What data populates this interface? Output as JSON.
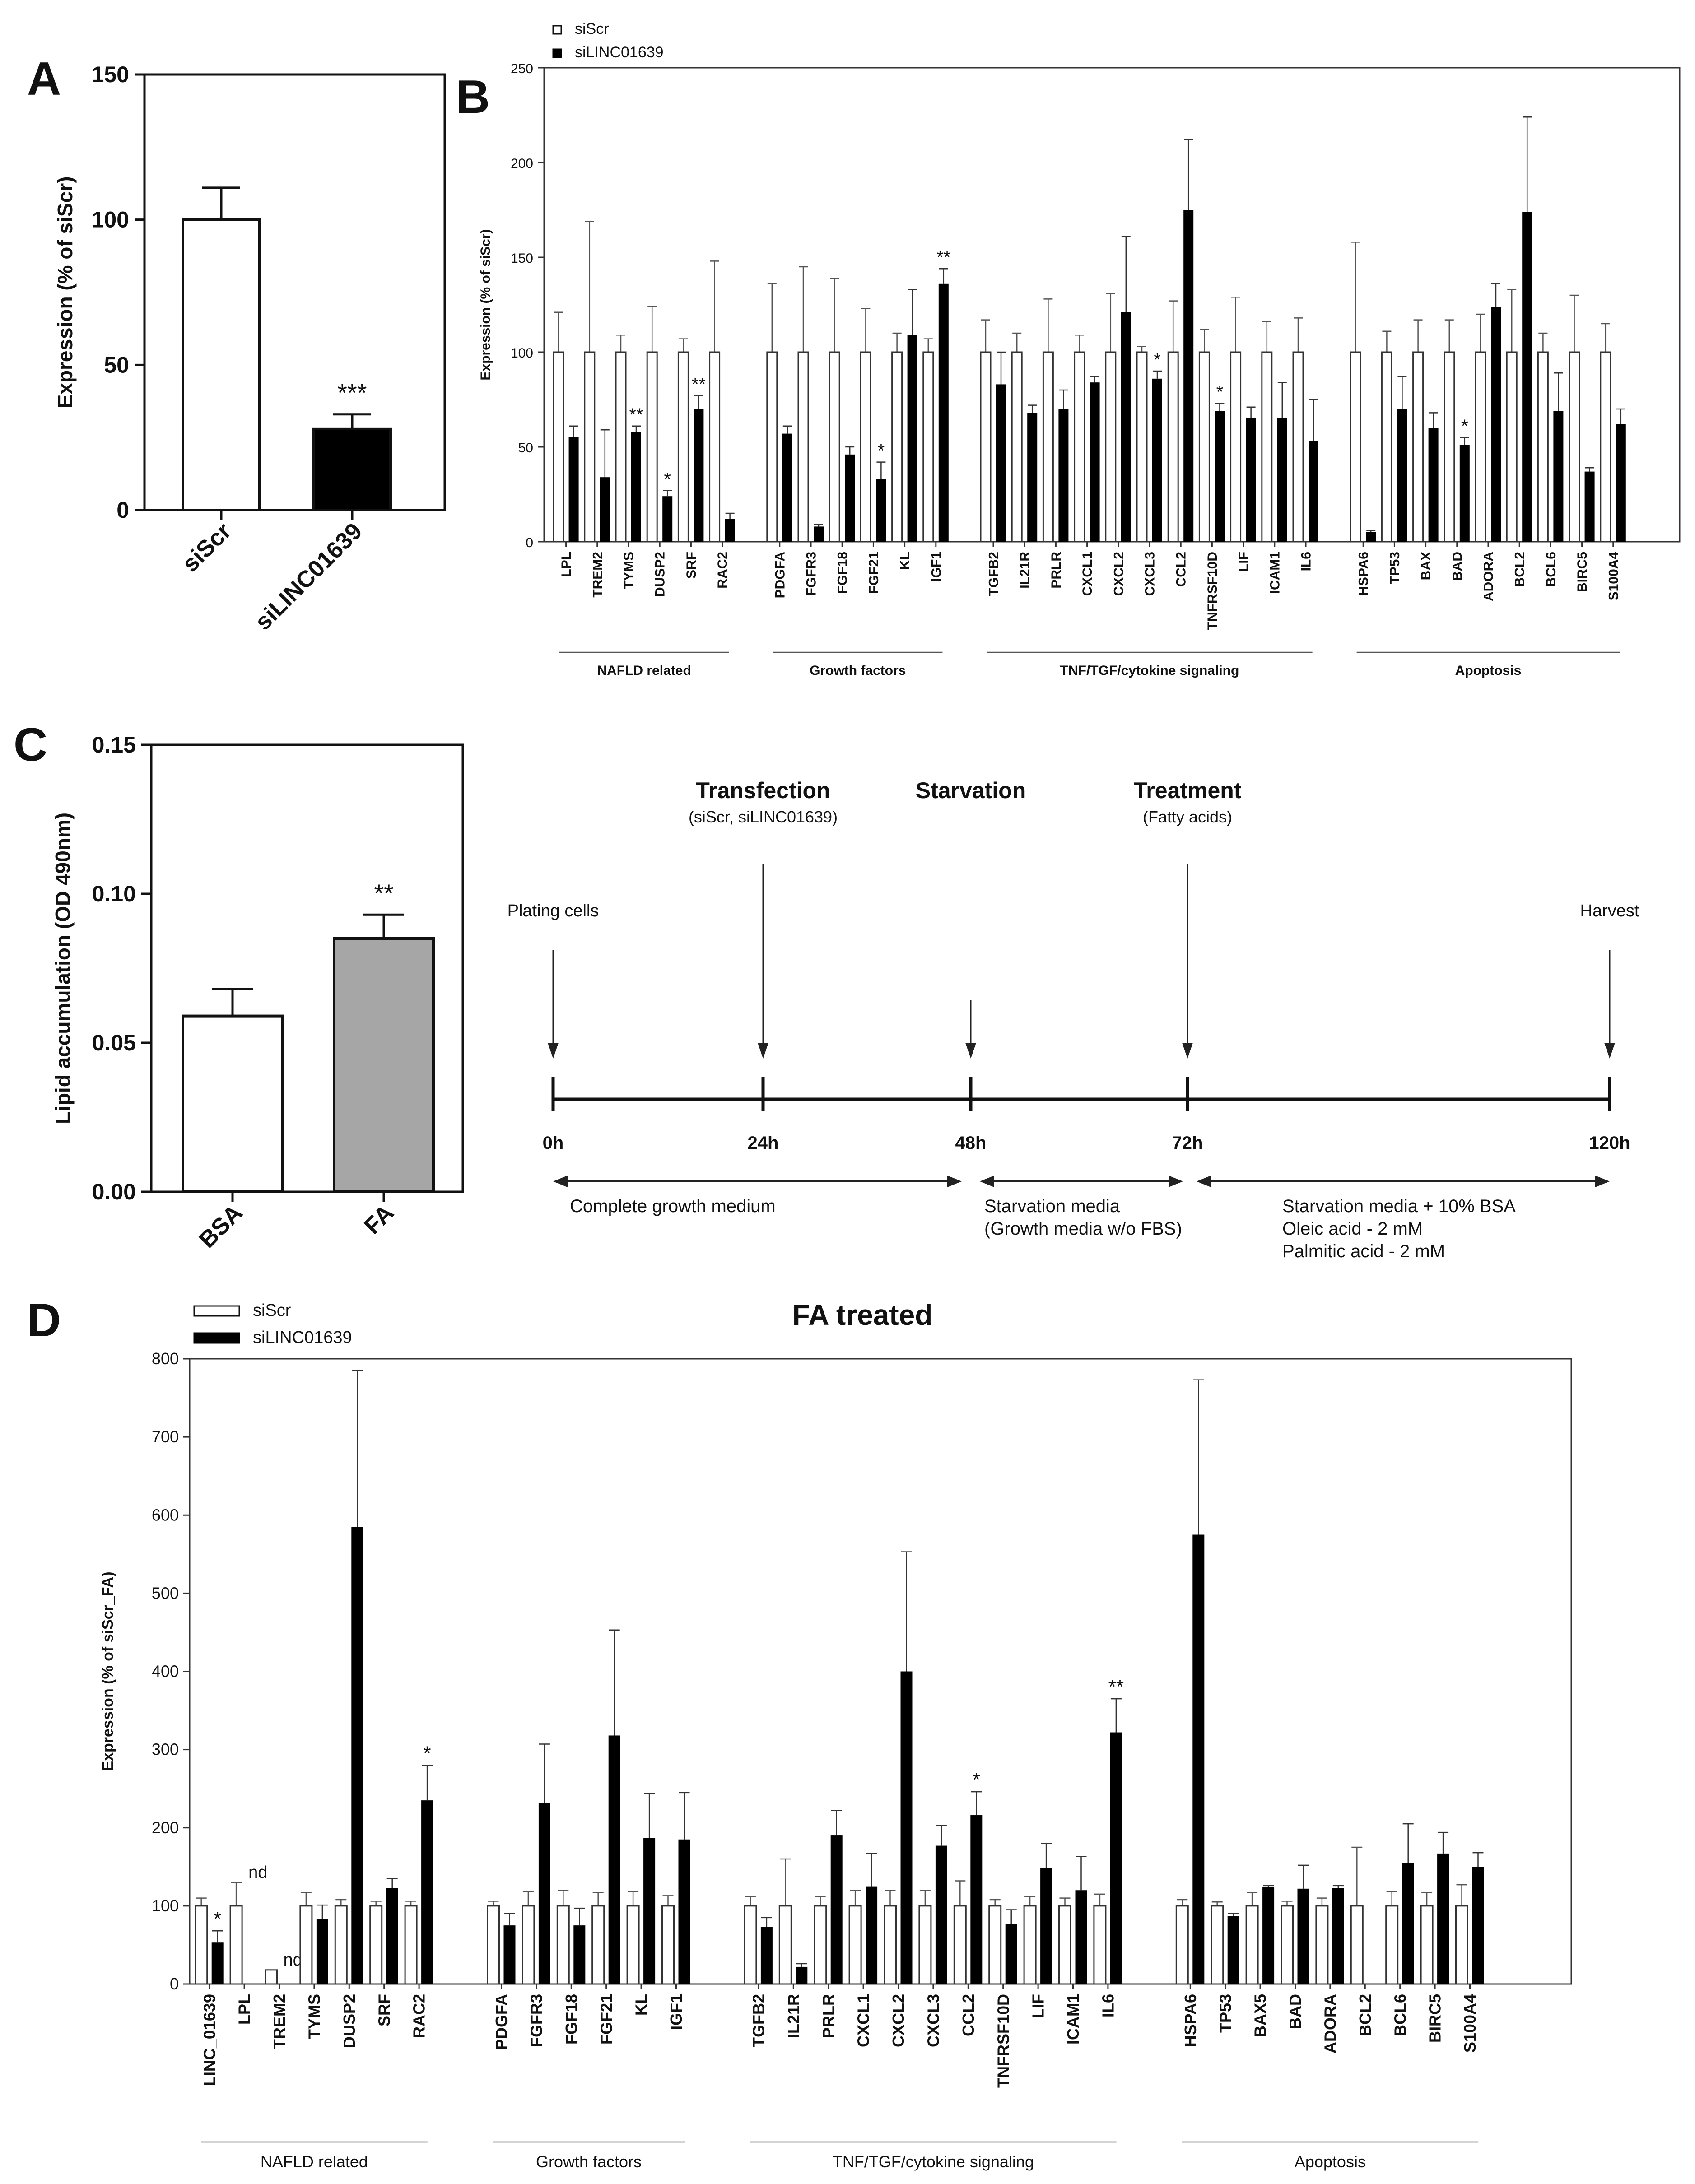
{
  "panels": {
    "A": "A",
    "B": "B",
    "C": "C",
    "D": "D"
  },
  "chart_data": [
    {
      "panel": "A",
      "type": "bar",
      "ylabel": "Expression (% of siScr)",
      "ylim": [
        0,
        150
      ],
      "yticks": [
        "0",
        "50",
        "100",
        "150"
      ],
      "categories": [
        "siScr",
        "siLINC01639"
      ],
      "values": [
        100,
        28
      ],
      "errors": [
        11,
        5
      ],
      "significance": [
        "",
        "***"
      ],
      "colors": [
        "#ffffff",
        "#000000"
      ]
    },
    {
      "panel": "B",
      "type": "bar",
      "ylabel": "Expression (% of siScr)",
      "ylim": [
        0,
        250
      ],
      "yticks": [
        "0",
        "50",
        "100",
        "150",
        "200",
        "250"
      ],
      "legend": [
        "siScr",
        "siLINC01639"
      ],
      "legend_position": "top-left",
      "colors": {
        "siScr": "#ffffff",
        "siLINC01639": "#000000"
      },
      "groups": [
        {
          "name": "NAFLD related",
          "genes": [
            {
              "g": "LPL",
              "a": 100,
              "ae": 21,
              "b": 55,
              "be": 6,
              "sig": ""
            },
            {
              "g": "TREM2",
              "a": 100,
              "ae": 69,
              "b": 34,
              "be": 25,
              "sig": ""
            },
            {
              "g": "TYMS",
              "a": 100,
              "ae": 9,
              "b": 58,
              "be": 3,
              "sig": "**"
            },
            {
              "g": "DUSP2",
              "a": 100,
              "ae": 24,
              "b": 24,
              "be": 3,
              "sig": "*"
            },
            {
              "g": "SRF",
              "a": 100,
              "ae": 7,
              "b": 70,
              "be": 7,
              "sig": "**"
            },
            {
              "g": "RAC2",
              "a": 100,
              "ae": 48,
              "b": 12,
              "be": 3,
              "sig": ""
            }
          ]
        },
        {
          "name": "Growth factors",
          "genes": [
            {
              "g": "PDGFA",
              "a": 100,
              "ae": 36,
              "b": 57,
              "be": 4,
              "sig": ""
            },
            {
              "g": "FGFR3",
              "a": 100,
              "ae": 45,
              "b": 8,
              "be": 1,
              "sig": ""
            },
            {
              "g": "FGF18",
              "a": 100,
              "ae": 39,
              "b": 46,
              "be": 4,
              "sig": ""
            },
            {
              "g": "FGF21",
              "a": 100,
              "ae": 23,
              "b": 33,
              "be": 9,
              "sig": "*"
            },
            {
              "g": "KL",
              "a": 100,
              "ae": 10,
              "b": 109,
              "be": 24,
              "sig": ""
            },
            {
              "g": "IGF1",
              "a": 100,
              "ae": 7,
              "b": 136,
              "be": 8,
              "sig": "**"
            }
          ]
        },
        {
          "name": "TNF/TGF/cytokine signaling",
          "genes": [
            {
              "g": "TGFB2",
              "a": 100,
              "ae": 17,
              "b": 83,
              "be": 17,
              "sig": ""
            },
            {
              "g": "IL21R",
              "a": 100,
              "ae": 10,
              "b": 68,
              "be": 4,
              "sig": ""
            },
            {
              "g": "PRLR",
              "a": 100,
              "ae": 28,
              "b": 70,
              "be": 10,
              "sig": ""
            },
            {
              "g": "CXCL1",
              "a": 100,
              "ae": 9,
              "b": 84,
              "be": 3,
              "sig": ""
            },
            {
              "g": "CXCL2",
              "a": 100,
              "ae": 31,
              "b": 121,
              "be": 40,
              "sig": ""
            },
            {
              "g": "CXCL3",
              "a": 100,
              "ae": 3,
              "b": 86,
              "be": 4,
              "sig": "*"
            },
            {
              "g": "CCL2",
              "a": 100,
              "ae": 27,
              "b": 175,
              "be": 37,
              "sig": ""
            },
            {
              "g": "TNFRSF10D",
              "a": 100,
              "ae": 12,
              "b": 69,
              "be": 4,
              "sig": "*"
            },
            {
              "g": "LIF",
              "a": 100,
              "ae": 29,
              "b": 65,
              "be": 6,
              "sig": ""
            },
            {
              "g": "ICAM1",
              "a": 100,
              "ae": 16,
              "b": 65,
              "be": 19,
              "sig": ""
            },
            {
              "g": "IL6",
              "a": 100,
              "ae": 18,
              "b": 53,
              "be": 22,
              "sig": ""
            }
          ]
        },
        {
          "name": "Apoptosis",
          "genes": [
            {
              "g": "HSPA6",
              "a": 100,
              "ae": 58,
              "b": 5,
              "be": 1,
              "sig": ""
            },
            {
              "g": "TP53",
              "a": 100,
              "ae": 11,
              "b": 70,
              "be": 17,
              "sig": ""
            },
            {
              "g": "BAX",
              "a": 100,
              "ae": 17,
              "b": 60,
              "be": 8,
              "sig": ""
            },
            {
              "g": "BAD",
              "a": 100,
              "ae": 17,
              "b": 51,
              "be": 4,
              "sig": "*"
            },
            {
              "g": "ADORA",
              "a": 100,
              "ae": 20,
              "b": 124,
              "be": 12,
              "sig": ""
            },
            {
              "g": "BCL2",
              "a": 100,
              "ae": 33,
              "b": 174,
              "be": 50,
              "sig": ""
            },
            {
              "g": "BCL6",
              "a": 100,
              "ae": 10,
              "b": 69,
              "be": 20,
              "sig": ""
            },
            {
              "g": "BIRC5",
              "a": 100,
              "ae": 30,
              "b": 37,
              "be": 2,
              "sig": ""
            },
            {
              "g": "S100A4",
              "a": 100,
              "ae": 15,
              "b": 62,
              "be": 8,
              "sig": ""
            }
          ]
        }
      ]
    },
    {
      "panel": "C",
      "type": "bar",
      "ylabel": "Lipid accumulation (OD 490nm)",
      "ylim": [
        0,
        0.15
      ],
      "yticks": [
        "0.00",
        "0.05",
        "0.10",
        "0.15"
      ],
      "categories": [
        "BSA",
        "FA"
      ],
      "values": [
        0.059,
        0.085
      ],
      "errors": [
        0.009,
        0.008
      ],
      "significance": [
        "",
        "**"
      ],
      "colors": [
        "#ffffff",
        "#a6a6a6"
      ]
    },
    {
      "panel": "D",
      "type": "bar",
      "title": "FA treated",
      "ylabel": "Expression (% of siScr_FA)",
      "ylim": [
        0,
        800
      ],
      "yticks": [
        "0",
        "100",
        "200",
        "300",
        "400",
        "500",
        "600",
        "700",
        "800"
      ],
      "legend": [
        "siScr",
        "siLINC01639"
      ],
      "legend_position": "top-left",
      "colors": {
        "siScr": "#ffffff",
        "siLINC01639": "#000000"
      },
      "groups": [
        {
          "name": "NAFLD related",
          "genes": [
            {
              "g": "LINC_01639",
              "a": 100,
              "ae": 10,
              "b": 53,
              "be": 15,
              "sig": "*"
            },
            {
              "g": "LPL",
              "a": 100,
              "ae": 30,
              "b": null,
              "be": 0,
              "sig": "",
              "note": "nd"
            },
            {
              "g": "TREM2",
              "a": 18,
              "ae": 0,
              "b": null,
              "be": 0,
              "sig": "",
              "note": "nd"
            },
            {
              "g": "TYMS",
              "a": 100,
              "ae": 17,
              "b": 83,
              "be": 18,
              "sig": ""
            },
            {
              "g": "DUSP2",
              "a": 100,
              "ae": 8,
              "b": 585,
              "be": 200,
              "sig": ""
            },
            {
              "g": "SRF",
              "a": 100,
              "ae": 6,
              "b": 123,
              "be": 12,
              "sig": ""
            },
            {
              "g": "RAC2",
              "a": 100,
              "ae": 6,
              "b": 235,
              "be": 45,
              "sig": "*"
            }
          ]
        },
        {
          "name": "Growth factors",
          "genes": [
            {
              "g": "PDGFA",
              "a": 100,
              "ae": 6,
              "b": 75,
              "be": 15,
              "sig": ""
            },
            {
              "g": "FGFR3",
              "a": 100,
              "ae": 18,
              "b": 232,
              "be": 75,
              "sig": ""
            },
            {
              "g": "FGF18",
              "a": 100,
              "ae": 20,
              "b": 75,
              "be": 22,
              "sig": ""
            },
            {
              "g": "FGF21",
              "a": 100,
              "ae": 17,
              "b": 318,
              "be": 135,
              "sig": ""
            },
            {
              "g": "KL",
              "a": 100,
              "ae": 18,
              "b": 187,
              "be": 57,
              "sig": ""
            },
            {
              "g": "IGF1",
              "a": 100,
              "ae": 13,
              "b": 185,
              "be": 60,
              "sig": ""
            }
          ]
        },
        {
          "name": "TNF/TGF/cytokine signaling",
          "genes": [
            {
              "g": "TGFB2",
              "a": 100,
              "ae": 12,
              "b": 73,
              "be": 12,
              "sig": ""
            },
            {
              "g": "IL21R",
              "a": 100,
              "ae": 60,
              "b": 22,
              "be": 4,
              "sig": ""
            },
            {
              "g": "PRLR",
              "a": 100,
              "ae": 12,
              "b": 190,
              "be": 32,
              "sig": ""
            },
            {
              "g": "CXCL1",
              "a": 100,
              "ae": 20,
              "b": 125,
              "be": 42,
              "sig": ""
            },
            {
              "g": "CXCL2",
              "a": 100,
              "ae": 20,
              "b": 400,
              "be": 153,
              "sig": ""
            },
            {
              "g": "CXCL3",
              "a": 100,
              "ae": 20,
              "b": 177,
              "be": 26,
              "sig": ""
            },
            {
              "g": "CCL2",
              "a": 100,
              "ae": 32,
              "b": 216,
              "be": 30,
              "sig": "*"
            },
            {
              "g": "TNFRSF10D",
              "a": 100,
              "ae": 8,
              "b": 77,
              "be": 18,
              "sig": ""
            },
            {
              "g": "LIF",
              "a": 100,
              "ae": 12,
              "b": 148,
              "be": 32,
              "sig": ""
            },
            {
              "g": "ICAM1",
              "a": 100,
              "ae": 10,
              "b": 120,
              "be": 43,
              "sig": ""
            },
            {
              "g": "IL6",
              "a": 100,
              "ae": 15,
              "b": 322,
              "be": 43,
              "sig": "**"
            }
          ]
        },
        {
          "name": "Apoptosis",
          "genes": [
            {
              "g": "HSPA6",
              "a": 100,
              "ae": 8,
              "b": 575,
              "be": 198,
              "sig": ""
            },
            {
              "g": "TP53",
              "a": 100,
              "ae": 5,
              "b": 87,
              "be": 3,
              "sig": ""
            },
            {
              "g": "BAX5",
              "a": 100,
              "ae": 17,
              "b": 124,
              "be": 2,
              "sig": ""
            },
            {
              "g": "BAD",
              "a": 100,
              "ae": 6,
              "b": 122,
              "be": 30,
              "sig": ""
            },
            {
              "g": "ADORA",
              "a": 100,
              "ae": 10,
              "b": 123,
              "be": 3,
              "sig": ""
            },
            {
              "g": "BCL2",
              "a": 100,
              "ae": 75,
              "b": null,
              "be": 0,
              "sig": ""
            },
            {
              "g": "BCL6",
              "a": 100,
              "ae": 18,
              "b": 155,
              "be": 50,
              "sig": ""
            },
            {
              "g": "BIRC5",
              "a": 100,
              "ae": 17,
              "b": 167,
              "be": 27,
              "sig": ""
            },
            {
              "g": "S100A4",
              "a": 100,
              "ae": 27,
              "b": 150,
              "be": 18,
              "sig": ""
            }
          ]
        }
      ]
    }
  ],
  "timeline": {
    "events": [
      {
        "title": "",
        "subtitle": "",
        "note": "Plating cells",
        "time": "0h"
      },
      {
        "title": "Transfection",
        "subtitle": "(siScr, siLINC01639)",
        "note": "",
        "time": "24h"
      },
      {
        "title": "Starvation",
        "subtitle": "",
        "note": "",
        "time": "48h"
      },
      {
        "title": "Treatment",
        "subtitle": "(Fatty acids)",
        "note": "",
        "time": "72h"
      },
      {
        "title": "",
        "subtitle": "",
        "note": "Harvest",
        "time": "120h"
      }
    ],
    "phases": [
      {
        "lines": [
          "Complete growth medium"
        ]
      },
      {
        "lines": [
          "Starvation media",
          "(Growth media w/o FBS)"
        ]
      },
      {
        "lines": [
          "Starvation media + 10% BSA",
          "Oleic acid - 2 mM",
          "Palmitic acid - 2 mM"
        ]
      }
    ]
  }
}
